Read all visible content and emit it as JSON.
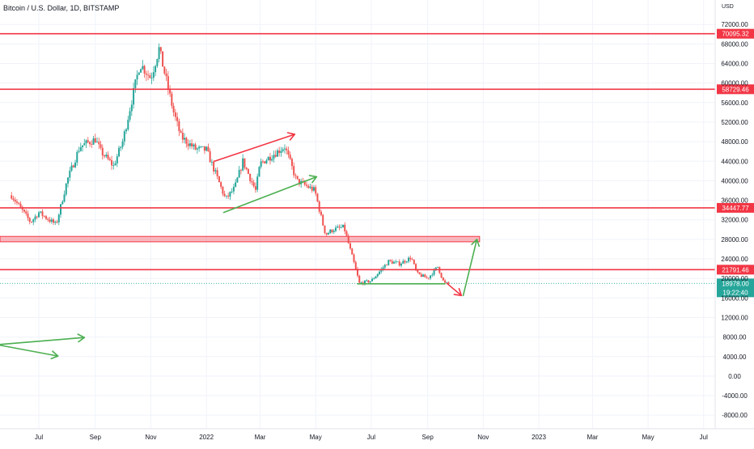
{
  "header": {
    "title": "Bitcoin / U.S. Dollar, 1D, BITSTAMP",
    "currency": "USD"
  },
  "colors": {
    "up": "#26a69a",
    "down": "#ef5350",
    "level_line": "#f23645",
    "green_line": "#4caf50",
    "axis_text": "#131722",
    "grid": "#f0f3fa"
  },
  "chart_data": {
    "type": "candlestick",
    "title": "Bitcoin / U.S. Dollar, 1D, BITSTAMP",
    "ylabel": "USD",
    "ylim": [
      -10000,
      74000
    ],
    "x_ticks": [
      "Jul",
      "Sep",
      "Nov",
      "2022",
      "Mar",
      "May",
      "Jul",
      "Sep",
      "Nov",
      "2023",
      "Mar",
      "May",
      "Jul"
    ],
    "y_ticks": [
      72000,
      68000,
      64000,
      60000,
      56000,
      52000,
      48000,
      44000,
      40000,
      36000,
      32000,
      28000,
      24000,
      20000,
      16000,
      12000,
      8000,
      4000,
      0,
      -4000,
      -8000
    ],
    "y_tick_labels": [
      "72000.00",
      "68000.00",
      "64000.00",
      "60000.00",
      "56000.00",
      "52000.00",
      "48000.00",
      "44000.00",
      "40000.00",
      "36000.00",
      "32000.00",
      "28000.00",
      "24000.00",
      "20000.00",
      "16000.00",
      "12000.00",
      "8000.00",
      "4000.00",
      "0.00",
      "-4000.00",
      "-8000.00"
    ],
    "price_series": {
      "name": "Bitcoin / U.S. Dollar",
      "dates": [
        "2021-06-01",
        "2021-06-22",
        "2021-07-01",
        "2021-07-20",
        "2021-08-01",
        "2021-08-15",
        "2021-09-01",
        "2021-09-07",
        "2021-09-21",
        "2021-10-01",
        "2021-10-20",
        "2021-11-01",
        "2021-11-10",
        "2021-11-26",
        "2021-12-04",
        "2021-12-20",
        "2022-01-01",
        "2022-01-22",
        "2022-02-01",
        "2022-02-10",
        "2022-02-24",
        "2022-03-01",
        "2022-03-28",
        "2022-04-10",
        "2022-04-30",
        "2022-05-09",
        "2022-05-12",
        "2022-05-20",
        "2022-06-01",
        "2022-06-13",
        "2022-06-18",
        "2022-07-01",
        "2022-07-20",
        "2022-08-01",
        "2022-08-14",
        "2022-08-20",
        "2022-09-01",
        "2022-09-12",
        "2022-09-19",
        "2022-09-24"
      ],
      "close": [
        37000,
        31500,
        33500,
        31000,
        40000,
        47000,
        48500,
        46000,
        43000,
        48000,
        64000,
        61000,
        67000,
        54000,
        49000,
        46500,
        46300,
        36200,
        38500,
        44000,
        38000,
        43500,
        47000,
        40000,
        38000,
        31000,
        29000,
        30000,
        30500,
        22500,
        19000,
        19500,
        23500,
        23000,
        24300,
        21000,
        20000,
        22400,
        19000,
        18978
      ]
    },
    "price_levels": [
      70095.32,
      58729.46,
      34447.77,
      21791.46
    ],
    "price_level_labels": [
      "70095.32",
      "58729.46",
      "34447.77",
      "21791.46"
    ],
    "support_zone": [
      27500,
      28600
    ],
    "last_price": {
      "value": 18978.0,
      "label": "18978.00",
      "countdown": "19:22:40"
    },
    "annotations": [
      {
        "type": "red-arrow",
        "from": [
          "2022-01-10",
          44000
        ],
        "to": [
          "2022-04-08",
          49500
        ]
      },
      {
        "type": "green-arrow",
        "from": [
          "2022-01-20",
          33500
        ],
        "to": [
          "2022-05-02",
          40800
        ]
      },
      {
        "type": "green-line",
        "from": [
          "2022-06-16",
          18900
        ],
        "to": [
          "2022-09-20",
          18900
        ]
      },
      {
        "type": "red-arrow",
        "from": [
          "2022-09-22",
          19000
        ],
        "to": [
          "2022-10-08",
          16500
        ]
      },
      {
        "type": "green-arrow",
        "from": [
          "2022-10-10",
          16500
        ],
        "to": [
          "2022-10-25",
          28000
        ]
      },
      {
        "type": "green-arrow",
        "from": [
          "2021-05-20",
          6500
        ],
        "to": [
          "2021-08-20",
          7900
        ]
      },
      {
        "type": "green-arrow",
        "from": [
          "2021-05-20",
          6300
        ],
        "to": [
          "2021-07-22",
          4100
        ]
      }
    ]
  }
}
